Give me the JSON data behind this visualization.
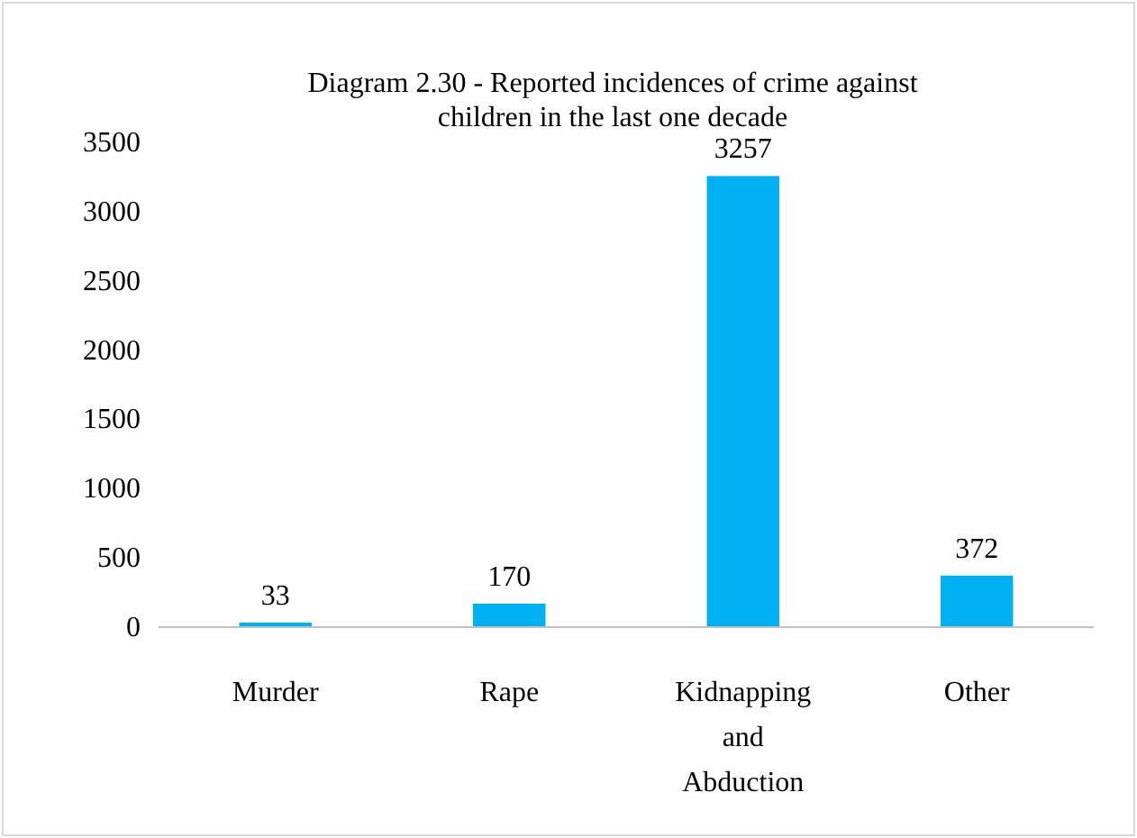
{
  "chart_data": {
    "type": "bar",
    "title": "Diagram 2.30 - Reported incidences of crime against children in the last one decade",
    "categories": [
      "Murder",
      "Rape",
      "Kidnapping and Abduction",
      "Other"
    ],
    "values": [
      33,
      170,
      3257,
      372
    ],
    "color": "#00b0f0",
    "ylim": [
      0,
      3500
    ],
    "yticks": [
      0,
      500,
      1000,
      1500,
      2000,
      2500,
      3000,
      3500
    ],
    "grid": false,
    "data_labels": true
  }
}
